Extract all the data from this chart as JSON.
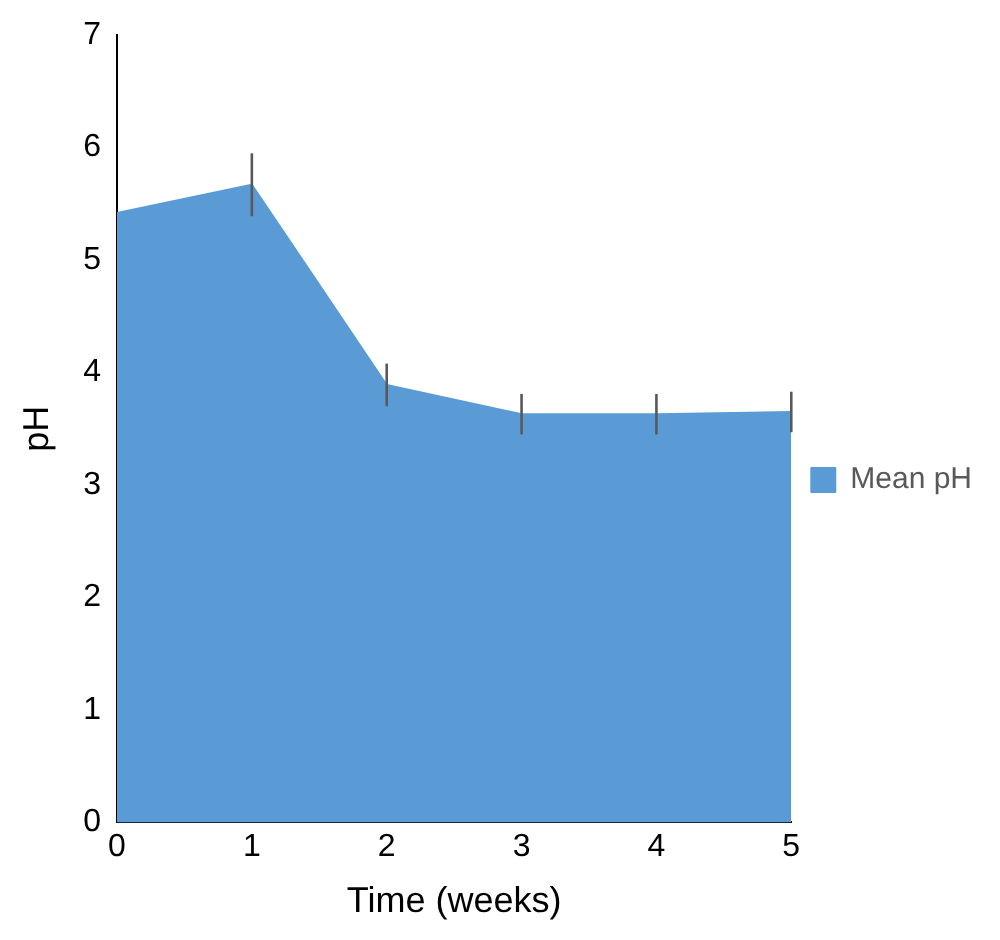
{
  "chart_data": {
    "type": "area",
    "xlabel": "Time (weeks)",
    "ylabel": "pH",
    "x": [
      0,
      1,
      2,
      3,
      4,
      5
    ],
    "xlim": [
      0,
      5
    ],
    "xticks": [
      0,
      1,
      2,
      3,
      4,
      5
    ],
    "ylim": [
      0,
      7
    ],
    "yticks": [
      0,
      1,
      2,
      3,
      4,
      5,
      6,
      7
    ],
    "series": [
      {
        "name": "Mean pH",
        "color": "#5b9bd5",
        "values": [
          5.42,
          5.67,
          3.89,
          3.63,
          3.63,
          3.65
        ],
        "errors": [
          null,
          0.28,
          0.19,
          0.18,
          0.18,
          0.18
        ]
      }
    ],
    "grid": false,
    "legend": "right"
  }
}
